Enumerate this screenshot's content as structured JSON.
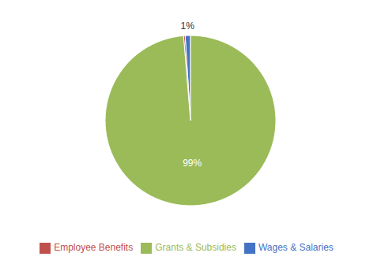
{
  "chart_data": {
    "type": "pie",
    "categories": [
      "Wages & Salaries",
      "Employee Benefits",
      "Grants & Subsidies"
    ],
    "values": [
      1,
      0.3,
      98.7
    ],
    "colors": [
      "#4472c4",
      "#c0504d",
      "#9bbb59"
    ],
    "data_labels": true,
    "value_labels": [
      "1%",
      null,
      "99%"
    ],
    "legend": "bottom"
  }
}
